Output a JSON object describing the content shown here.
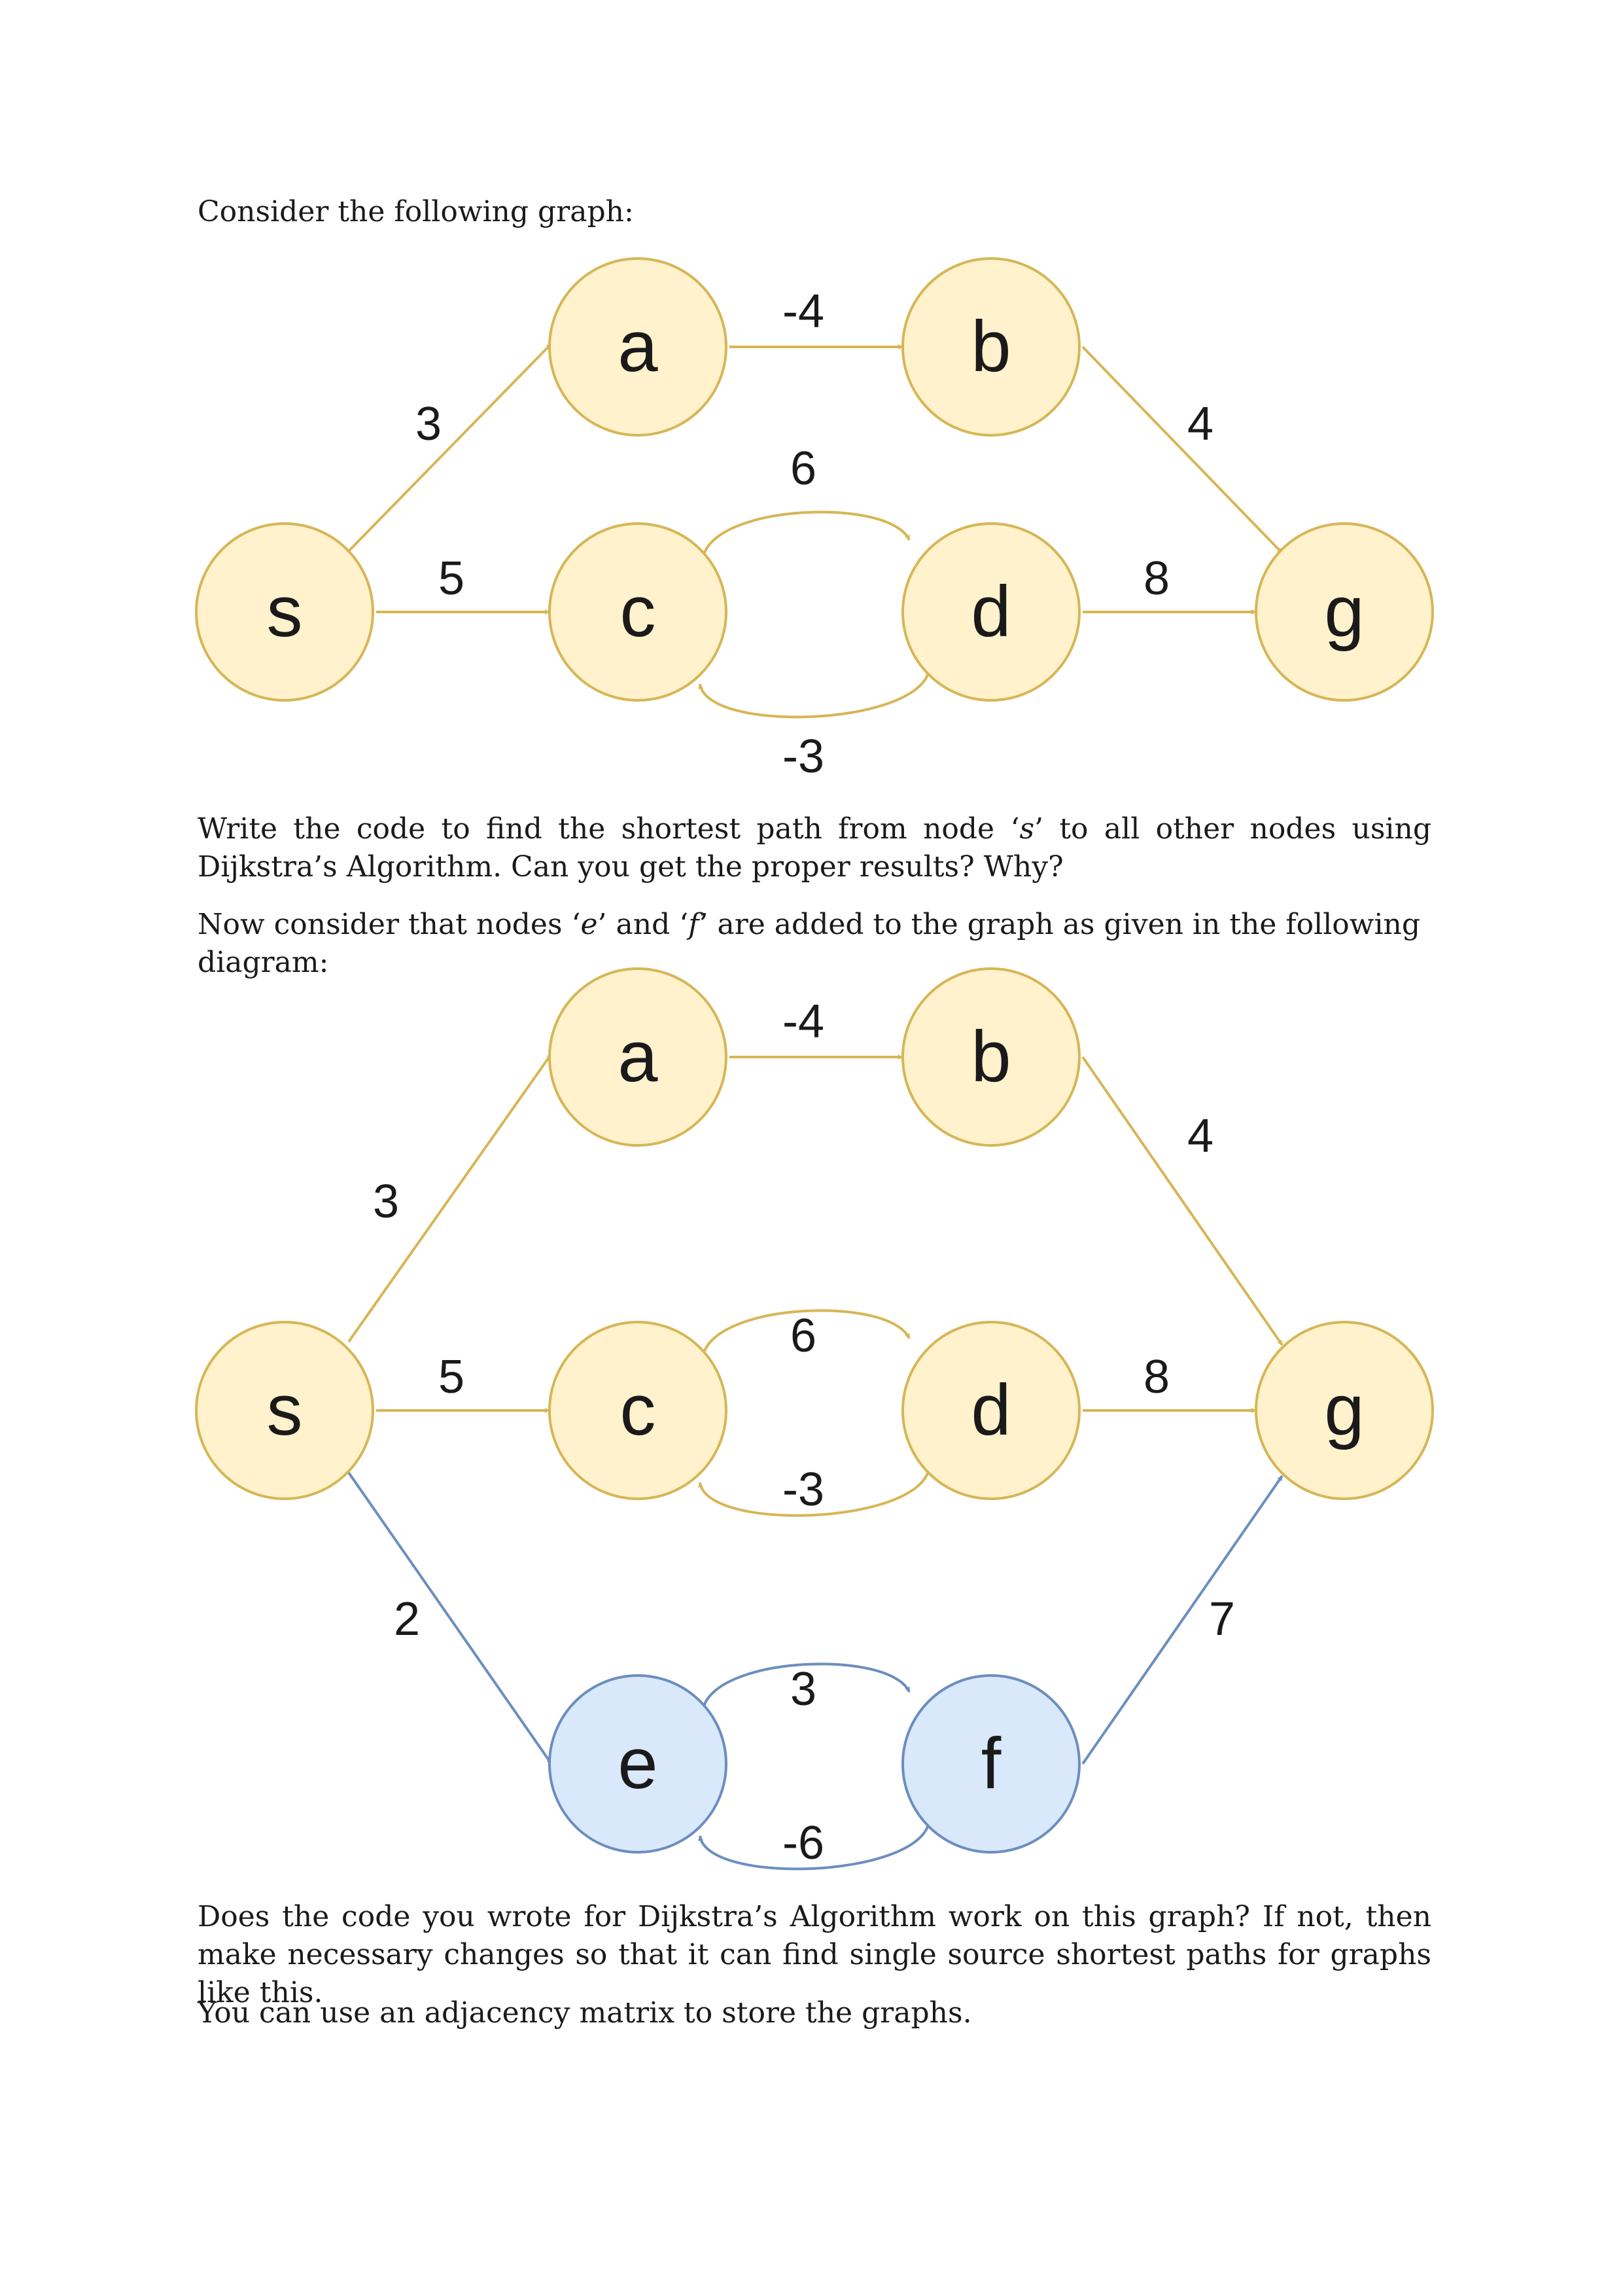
{
  "intro_text": "Consider the following graph:",
  "question_1": {
    "pre": "Write the code to find the shortest path from node ‘",
    "node": "s",
    "post": "’ to all other nodes using Dijkstra’s Algorithm. Can you get the proper results? Why?"
  },
  "transition": {
    "pre": "Now consider that nodes ‘",
    "node_e": "e",
    "mid": "’ and ‘",
    "node_f": "f",
    "post": "’ are added to the graph as given in the following diagram:"
  },
  "question_2": "Does the code you wrote for Dijkstra’s Algorithm work on this graph? If not, then make necessary changes so that it can find single source shortest paths for graphs like this.",
  "hint_text": "You can use an adjacency matrix to store the graphs.",
  "colors": {
    "yellow_fill": "#fff2cc",
    "yellow_stroke": "#d6b656",
    "blue_fill": "#dae8fc",
    "blue_stroke": "#6c8ebf"
  },
  "graph_1": {
    "nodes": [
      "s",
      "a",
      "b",
      "c",
      "d",
      "g"
    ],
    "edges": [
      {
        "from": "s",
        "to": "a",
        "weight": "3"
      },
      {
        "from": "a",
        "to": "b",
        "weight": "-4"
      },
      {
        "from": "b",
        "to": "g",
        "weight": "4"
      },
      {
        "from": "s",
        "to": "c",
        "weight": "5"
      },
      {
        "from": "c",
        "to": "d",
        "weight": "6"
      },
      {
        "from": "d",
        "to": "c",
        "weight": "-3"
      },
      {
        "from": "d",
        "to": "g",
        "weight": "8"
      }
    ]
  },
  "graph_2": {
    "nodes": [
      "s",
      "a",
      "b",
      "c",
      "d",
      "g",
      "e",
      "f"
    ],
    "edges": [
      {
        "from": "s",
        "to": "a",
        "weight": "3"
      },
      {
        "from": "a",
        "to": "b",
        "weight": "-4"
      },
      {
        "from": "b",
        "to": "g",
        "weight": "4"
      },
      {
        "from": "s",
        "to": "c",
        "weight": "5"
      },
      {
        "from": "c",
        "to": "d",
        "weight": "6"
      },
      {
        "from": "d",
        "to": "c",
        "weight": "-3"
      },
      {
        "from": "d",
        "to": "g",
        "weight": "8"
      },
      {
        "from": "s",
        "to": "e",
        "weight": "2"
      },
      {
        "from": "e",
        "to": "f",
        "weight": "3"
      },
      {
        "from": "f",
        "to": "e",
        "weight": "-6"
      },
      {
        "from": "f",
        "to": "g",
        "weight": "7"
      }
    ]
  }
}
